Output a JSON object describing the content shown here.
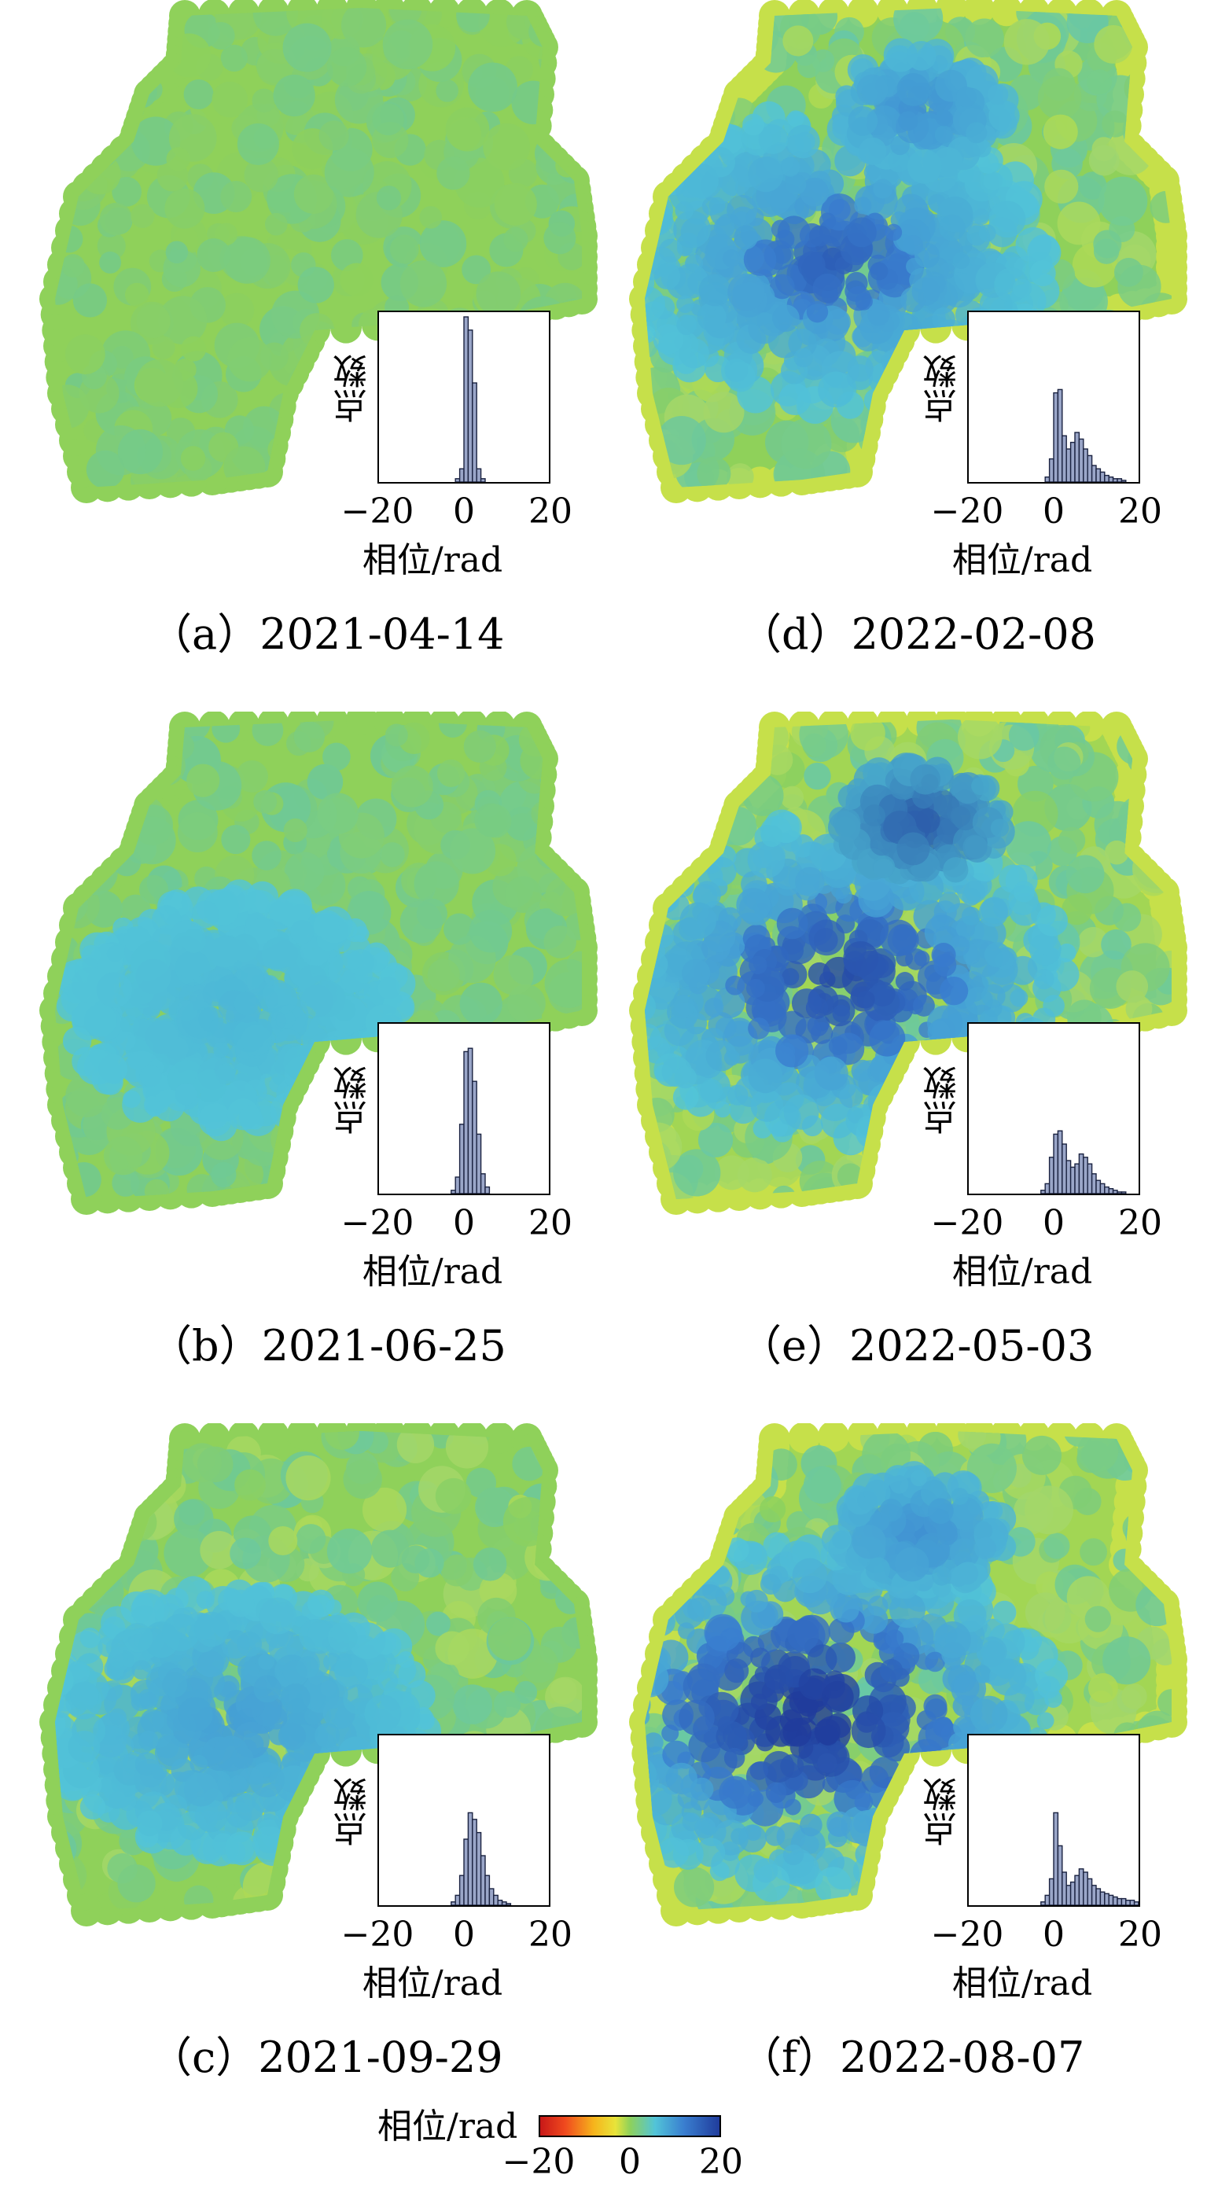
{
  "colors": {
    "green": "#8fd15a",
    "yellow_green": "#c6e04a",
    "cyan": "#52c4d8",
    "teal": "#5fc4b0",
    "blue": "#3a7fd0",
    "navy": "#203c9c"
  },
  "colorbar": {
    "label": "相位/rad",
    "ticks": [
      "−20",
      "0",
      "20"
    ]
  },
  "chart_data": [
    {
      "type": "histogram",
      "caption": "（a）2021-04-14",
      "ylabel": "点数",
      "xlabel": "相位/rad",
      "xticks": [
        "−20",
        "0",
        "20"
      ],
      "xlim": [
        -20,
        20
      ],
      "bins_x": [
        -2,
        -1,
        0,
        1,
        2,
        3,
        4
      ],
      "values": [
        2,
        8,
        100,
        92,
        60,
        8,
        2
      ]
    },
    {
      "type": "histogram",
      "caption": "（b）2021-06-25",
      "ylabel": "点数",
      "xlabel": "相位/rad",
      "xticks": [
        "−20",
        "0",
        "20"
      ],
      "xlim": [
        -20,
        20
      ],
      "bins_x": [
        -3,
        -2,
        -1,
        0,
        1,
        2,
        3,
        4,
        5
      ],
      "values": [
        2,
        10,
        42,
        86,
        88,
        68,
        36,
        12,
        4
      ]
    },
    {
      "type": "histogram",
      "caption": "（c）2021-09-29",
      "ylabel": "点数",
      "xlabel": "相位/rad",
      "xticks": [
        "−20",
        "0",
        "20"
      ],
      "xlim": [
        -20,
        20
      ],
      "bins_x": [
        -3,
        -2,
        -1,
        0,
        1,
        2,
        3,
        4,
        5,
        6,
        7,
        8,
        9,
        10
      ],
      "values": [
        2,
        6,
        18,
        40,
        56,
        52,
        44,
        30,
        18,
        10,
        6,
        3,
        2,
        1
      ]
    },
    {
      "type": "histogram",
      "caption": "（d）2022-02-08",
      "ylabel": "点数",
      "xlabel": "相位/rad",
      "xticks": [
        "−20",
        "0",
        "20"
      ],
      "xlim": [
        -20,
        20
      ],
      "bins_x": [
        -2,
        -1,
        0,
        1,
        2,
        3,
        4,
        5,
        6,
        7,
        8,
        9,
        10,
        11,
        12,
        13,
        14,
        15,
        16
      ],
      "values": [
        3,
        14,
        54,
        56,
        28,
        20,
        24,
        30,
        26,
        20,
        16,
        10,
        8,
        6,
        4,
        3,
        2,
        2,
        1
      ]
    },
    {
      "type": "histogram",
      "caption": "（e）2022-05-03",
      "ylabel": "点数",
      "xlabel": "相位/rad",
      "xticks": [
        "−20",
        "0",
        "20"
      ],
      "xlim": [
        -20,
        20
      ],
      "bins_x": [
        -3,
        -2,
        -1,
        0,
        1,
        2,
        3,
        4,
        5,
        6,
        7,
        8,
        9,
        10,
        11,
        12,
        13,
        14,
        15,
        16
      ],
      "values": [
        2,
        6,
        22,
        36,
        38,
        30,
        20,
        16,
        18,
        24,
        22,
        18,
        12,
        8,
        6,
        4,
        3,
        2,
        1,
        1
      ]
    },
    {
      "type": "histogram",
      "caption": "（f）2022-08-07",
      "ylabel": "点数",
      "xlabel": "相位/rad",
      "xticks": [
        "−20",
        "0",
        "20"
      ],
      "xlim": [
        -20,
        20
      ],
      "bins_x": [
        -3,
        -2,
        -1,
        0,
        1,
        2,
        3,
        4,
        5,
        6,
        7,
        8,
        9,
        10,
        11,
        12,
        13,
        14,
        15,
        16,
        17,
        18,
        19,
        20
      ],
      "values": [
        2,
        6,
        16,
        56,
        36,
        20,
        12,
        14,
        18,
        22,
        20,
        16,
        12,
        10,
        8,
        7,
        6,
        5,
        4,
        4,
        3,
        3,
        2,
        2
      ]
    }
  ]
}
